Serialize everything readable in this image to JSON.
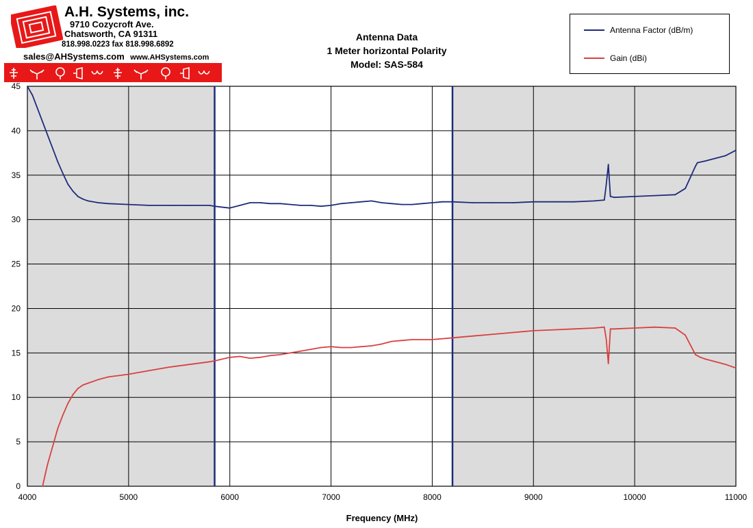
{
  "header": {
    "company": "A.H. Systems, inc.",
    "address": "9710 Cozycroft Ave.",
    "city": "Chatsworth, CA 91311",
    "phones": "818.998.0223 fax 818.998.6892",
    "contact_email": "sales@AHSystems.com",
    "contact_web": "www.AHSystems.com"
  },
  "chart_data": {
    "type": "line",
    "title": "Antenna Data",
    "subtitle": "1 Meter horizontal Polarity",
    "model": "Model: SAS-584",
    "xlabel": "Frequency (MHz)",
    "ylabel": "",
    "xlim": [
      4000,
      11000
    ],
    "ylim": [
      0,
      45
    ],
    "x_ticks": [
      4000,
      5000,
      6000,
      7000,
      8000,
      9000,
      10000,
      11000
    ],
    "y_ticks": [
      0,
      5,
      10,
      15,
      20,
      25,
      30,
      35,
      40,
      45
    ],
    "grid": true,
    "legend_position": "top-right",
    "shaded_ranges": [
      [
        4000,
        5850
      ],
      [
        8200,
        11000
      ]
    ],
    "band_edges": [
      5850,
      8200
    ],
    "series": [
      {
        "name": "Antenna Factor (dB/m)",
        "color": "#1f2a7a",
        "x": [
          4000,
          4050,
          4100,
          4150,
          4200,
          4250,
          4300,
          4350,
          4400,
          4450,
          4500,
          4550,
          4600,
          4700,
          4800,
          5000,
          5200,
          5400,
          5600,
          5800,
          5850,
          6000,
          6100,
          6200,
          6300,
          6400,
          6500,
          6600,
          6700,
          6800,
          6900,
          7000,
          7100,
          7200,
          7300,
          7400,
          7500,
          7600,
          7700,
          7800,
          7900,
          8000,
          8100,
          8200,
          8400,
          8600,
          8800,
          9000,
          9200,
          9400,
          9600,
          9700,
          9720,
          9740,
          9760,
          9800,
          10000,
          10200,
          10400,
          10500,
          10600,
          10620,
          10700,
          10800,
          10900,
          11000
        ],
        "values": [
          45.0,
          44.0,
          42.5,
          41.0,
          39.5,
          38.0,
          36.5,
          35.2,
          34.0,
          33.2,
          32.6,
          32.3,
          32.1,
          31.9,
          31.8,
          31.7,
          31.6,
          31.6,
          31.6,
          31.6,
          31.5,
          31.3,
          31.6,
          31.9,
          31.9,
          31.8,
          31.8,
          31.7,
          31.6,
          31.6,
          31.5,
          31.6,
          31.8,
          31.9,
          32.0,
          32.1,
          31.9,
          31.8,
          31.7,
          31.7,
          31.8,
          31.9,
          32.0,
          32.0,
          31.9,
          31.9,
          31.9,
          32.0,
          32.0,
          32.0,
          32.1,
          32.2,
          34.0,
          36.2,
          32.6,
          32.5,
          32.6,
          32.7,
          32.8,
          33.5,
          36.0,
          36.4,
          36.6,
          36.9,
          37.2,
          37.8
        ]
      },
      {
        "name": "Gain (dBi)",
        "color": "#d94040",
        "x": [
          4150,
          4180,
          4200,
          4250,
          4300,
          4350,
          4400,
          4450,
          4500,
          4550,
          4600,
          4700,
          4800,
          5000,
          5200,
          5400,
          5600,
          5800,
          5850,
          6000,
          6100,
          6200,
          6300,
          6400,
          6500,
          6600,
          6700,
          6800,
          6900,
          7000,
          7100,
          7200,
          7300,
          7400,
          7500,
          7600,
          7700,
          7800,
          7900,
          8000,
          8100,
          8200,
          8400,
          8600,
          8800,
          9000,
          9200,
          9400,
          9600,
          9700,
          9720,
          9740,
          9760,
          9800,
          10000,
          10200,
          10400,
          10500,
          10600,
          10650,
          10700,
          10800,
          10900,
          11000
        ],
        "values": [
          0.0,
          1.5,
          2.5,
          4.5,
          6.5,
          8.0,
          9.3,
          10.3,
          11.0,
          11.4,
          11.6,
          12.0,
          12.3,
          12.6,
          13.0,
          13.4,
          13.7,
          14.0,
          14.1,
          14.5,
          14.6,
          14.4,
          14.5,
          14.7,
          14.8,
          15.0,
          15.2,
          15.4,
          15.6,
          15.7,
          15.6,
          15.6,
          15.7,
          15.8,
          16.0,
          16.3,
          16.4,
          16.5,
          16.5,
          16.5,
          16.6,
          16.7,
          16.9,
          17.1,
          17.3,
          17.5,
          17.6,
          17.7,
          17.8,
          17.9,
          16.5,
          13.8,
          17.7,
          17.7,
          17.8,
          17.9,
          17.8,
          17.0,
          14.8,
          14.5,
          14.3,
          14.0,
          13.7,
          13.3
        ]
      }
    ]
  }
}
